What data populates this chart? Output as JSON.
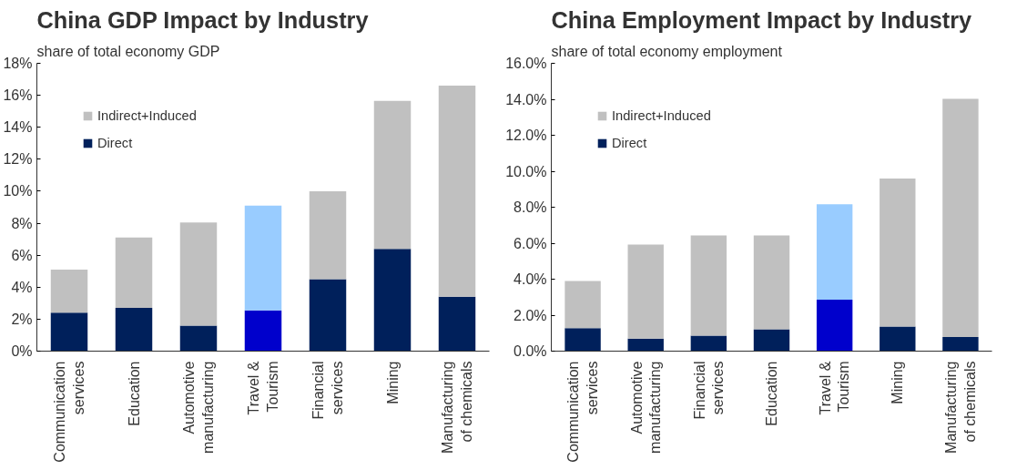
{
  "chart_data": [
    {
      "type": "bar",
      "stacked": true,
      "title": "China GDP Impact by Industry",
      "subtitle": "share of total economy GDP",
      "categories": [
        "Communication services",
        "Education",
        "Automotive manufacturing",
        "Travel & Tourism",
        "Financial services",
        "Mining",
        "Manufacturing of chemicals"
      ],
      "series": [
        {
          "name": "Direct",
          "color": "#00205b",
          "colors": [
            null,
            null,
            null,
            "#0000cc",
            null,
            null,
            null
          ],
          "values": [
            2.4,
            2.7,
            1.6,
            2.55,
            4.5,
            6.4,
            3.4
          ]
        },
        {
          "name": "Indirect+Induced",
          "color": "#c0c0c0",
          "colors": [
            null,
            null,
            null,
            "#99ccff",
            null,
            null,
            null
          ],
          "values": [
            2.7,
            4.4,
            6.45,
            6.55,
            5.5,
            9.25,
            13.2
          ]
        }
      ],
      "ylim": [
        0,
        18
      ],
      "yticks": [
        {
          "value": 0,
          "label": "0%"
        },
        {
          "value": 2,
          "label": "2%"
        },
        {
          "value": 4,
          "label": "4%"
        },
        {
          "value": 6,
          "label": "6%"
        },
        {
          "value": 8,
          "label": "8%"
        },
        {
          "value": 10,
          "label": "10%"
        },
        {
          "value": 12,
          "label": "12%"
        },
        {
          "value": 14,
          "label": "14%"
        },
        {
          "value": 16,
          "label": "16%"
        },
        {
          "value": 18,
          "label": "18%"
        }
      ],
      "grid": false,
      "legend": "top left"
    },
    {
      "type": "bar",
      "stacked": true,
      "title": "China Employment Impact by Industry",
      "subtitle": "share of total economy employment",
      "categories": [
        "Communication services",
        "Automotive manufacturing",
        "Financial services",
        "Education",
        "Travel & Tourism",
        "Mining",
        "Manufacturing of chemicals"
      ],
      "series": [
        {
          "name": "Direct",
          "color": "#00205b",
          "colors": [
            null,
            null,
            null,
            null,
            "#0000cc",
            null,
            null
          ],
          "values": [
            1.28,
            0.7,
            0.86,
            1.22,
            2.86,
            1.37,
            0.78
          ]
        },
        {
          "name": "Indirect+Induced",
          "color": "#c0c0c0",
          "colors": [
            null,
            null,
            null,
            null,
            "#99ccff",
            null,
            null
          ],
          "values": [
            2.62,
            5.22,
            5.57,
            5.21,
            5.31,
            8.23,
            13.25
          ]
        }
      ],
      "ylim": [
        0,
        16
      ],
      "yticks": [
        {
          "value": 0,
          "label": "0.0%"
        },
        {
          "value": 2,
          "label": "2.0%"
        },
        {
          "value": 4,
          "label": "4.0%"
        },
        {
          "value": 6,
          "label": "6.0%"
        },
        {
          "value": 8,
          "label": "8.0%"
        },
        {
          "value": 10,
          "label": "10.0%"
        },
        {
          "value": 12,
          "label": "12.0%"
        },
        {
          "value": 14,
          "label": "14.0%"
        },
        {
          "value": 16,
          "label": "16.0%"
        }
      ],
      "grid": false,
      "legend": "top left"
    }
  ]
}
